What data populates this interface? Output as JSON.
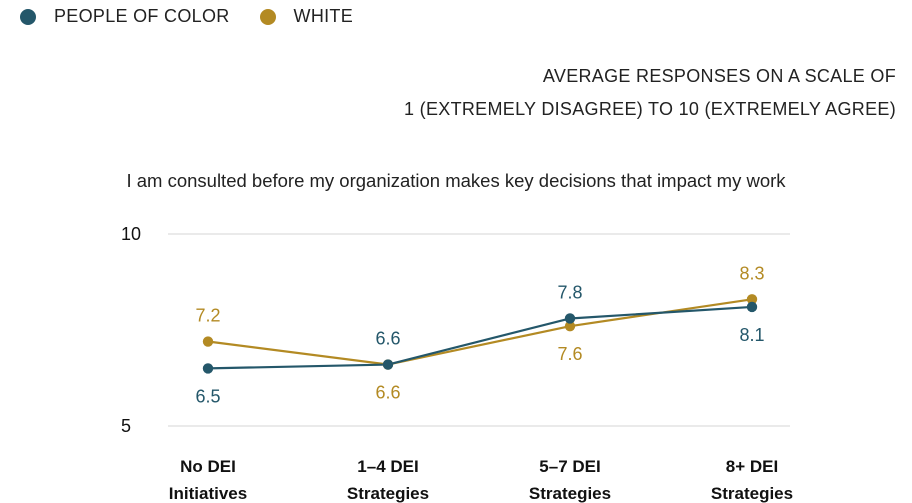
{
  "legend": {
    "items": [
      {
        "label": "PEOPLE OF COLOR",
        "color": "#24576a"
      },
      {
        "label": "WHITE",
        "color": "#b38a23"
      }
    ]
  },
  "scale_note": {
    "line1": "AVERAGE RESPONSES ON A SCALE OF",
    "line2": "1 (EXTREMELY DISAGREE) TO 10 (EXTREMELY AGREE)"
  },
  "chart_data": {
    "type": "line",
    "title": "I am consulted before my organization makes key decisions that impact my work",
    "categories": [
      [
        "No DEI",
        "Initiatives"
      ],
      [
        "1–4 DEI",
        "Strategies"
      ],
      [
        "5–7 DEI",
        "Strategies"
      ],
      [
        "8+ DEI",
        "Strategies"
      ]
    ],
    "series": [
      {
        "name": "PEOPLE OF COLOR",
        "color": "#24576a",
        "values": [
          6.5,
          6.6,
          7.8,
          8.1
        ]
      },
      {
        "name": "WHITE",
        "color": "#b38a23",
        "values": [
          7.2,
          6.6,
          7.6,
          8.3
        ]
      }
    ],
    "ylim": [
      5,
      10
    ],
    "yticks": [
      "5",
      "10"
    ],
    "grid": true,
    "legend_position": "top-left"
  }
}
